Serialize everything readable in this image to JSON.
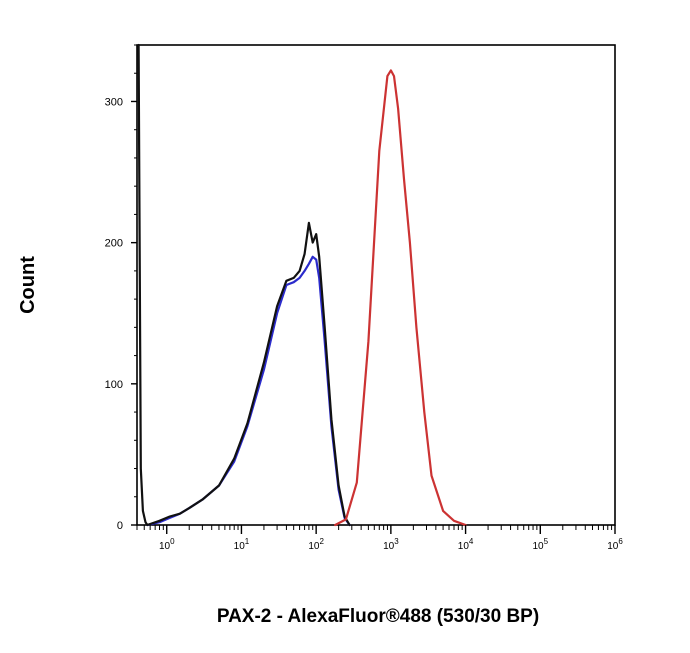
{
  "chart_data": {
    "type": "line",
    "title": "",
    "xlabel": "PAX-2 - AlexaFluor®488 (530/30 BP)",
    "ylabel": "Count",
    "x_scale": "log10",
    "xlim": [
      0.4,
      1000000
    ],
    "ylim": [
      0,
      340
    ],
    "y_ticks": [
      0,
      100,
      200,
      300
    ],
    "y_tick_labels": [
      "0",
      "100",
      "200",
      "300"
    ],
    "x_ticks": [
      1,
      10,
      100,
      1000,
      10000,
      100000,
      1000000
    ],
    "x_tick_labels": [
      {
        "base": "10",
        "exp": "0"
      },
      {
        "base": "10",
        "exp": "1"
      },
      {
        "base": "10",
        "exp": "2"
      },
      {
        "base": "10",
        "exp": "3"
      },
      {
        "base": "10",
        "exp": "4"
      },
      {
        "base": "10",
        "exp": "5"
      },
      {
        "base": "10",
        "exp": "6"
      }
    ],
    "grid": false,
    "legend": "none",
    "series": [
      {
        "color": "#2b2bcc",
        "x": [
          0.55,
          0.8,
          1.1,
          1.5,
          2.0,
          3.0,
          5.0,
          8.0,
          12,
          20,
          30,
          40,
          50,
          60,
          70,
          80,
          90,
          100,
          110,
          130,
          160,
          200,
          240,
          280
        ],
        "y": [
          0,
          2,
          5,
          8,
          12,
          18,
          28,
          45,
          70,
          110,
          150,
          170,
          172,
          175,
          180,
          185,
          190,
          188,
          175,
          130,
          70,
          25,
          5,
          0
        ]
      },
      {
        "color": "#111111",
        "x": [
          0.42,
          0.45,
          0.48,
          0.52,
          0.55,
          0.8,
          1.1,
          1.5,
          2.0,
          3.0,
          5.0,
          8.0,
          12,
          20,
          30,
          40,
          50,
          60,
          70,
          80,
          90,
          100,
          110,
          130,
          160,
          200,
          240,
          280
        ],
        "y": [
          340,
          40,
          10,
          2,
          0,
          3,
          6,
          8,
          12,
          18,
          28,
          47,
          72,
          115,
          155,
          173,
          175,
          180,
          192,
          214,
          200,
          206,
          190,
          140,
          75,
          28,
          6,
          0
        ]
      },
      {
        "color": "#cc3333",
        "x": [
          180,
          250,
          350,
          500,
          700,
          900,
          1000,
          1100,
          1250,
          1500,
          1800,
          2200,
          2800,
          3500,
          5000,
          7000,
          10000
        ],
        "y": [
          0,
          4,
          30,
          130,
          265,
          318,
          322,
          318,
          295,
          245,
          200,
          140,
          80,
          35,
          10,
          3,
          0
        ]
      }
    ]
  }
}
